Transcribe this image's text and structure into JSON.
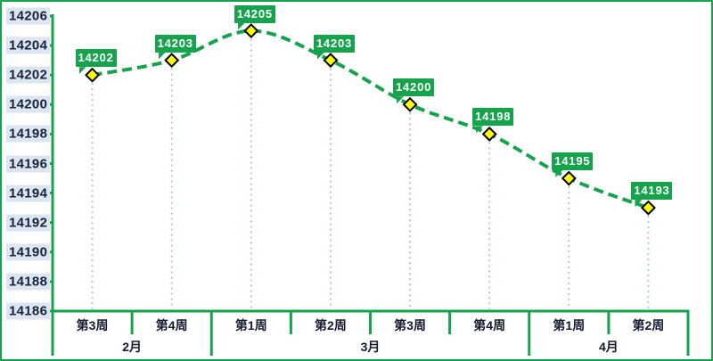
{
  "colors": {
    "accent_green": "#17a24e",
    "dropline_green": "#a5d6b2",
    "marker_fill": "#ffff00",
    "marker_border": "#000000",
    "data_label_bg": "#17a24e",
    "data_label_text": "#ffffff",
    "y_label_bg": "#dce6f1",
    "y_label_text": "#16233f",
    "x_label_text": "#121a30",
    "page_border": "#17a24e",
    "background": "#ffffff"
  },
  "chart_data": {
    "type": "line",
    "title": "",
    "line_style": "dashed-smooth",
    "marker": "diamond",
    "grid": false,
    "legend": false,
    "x_labels": [
      "第3周",
      "第4周",
      "第1周",
      "第2周",
      "第3周",
      "第4周",
      "第1周",
      "第2周"
    ],
    "month_groups": [
      {
        "label": "2月",
        "weeks": 2
      },
      {
        "label": "3月",
        "weeks": 4
      },
      {
        "label": "4月",
        "weeks": 2
      }
    ],
    "values": [
      14202,
      14203,
      14205,
      14203,
      14200,
      14198,
      14195,
      14193
    ],
    "data_labels": [
      "14202",
      "14203",
      "14205",
      "14203",
      "14200",
      "14198",
      "14195",
      "14193"
    ],
    "y_ticks": [
      14206,
      14204,
      14202,
      14200,
      14198,
      14196,
      14194,
      14192,
      14190,
      14188,
      14186
    ],
    "ylim": [
      14186,
      14206
    ]
  }
}
